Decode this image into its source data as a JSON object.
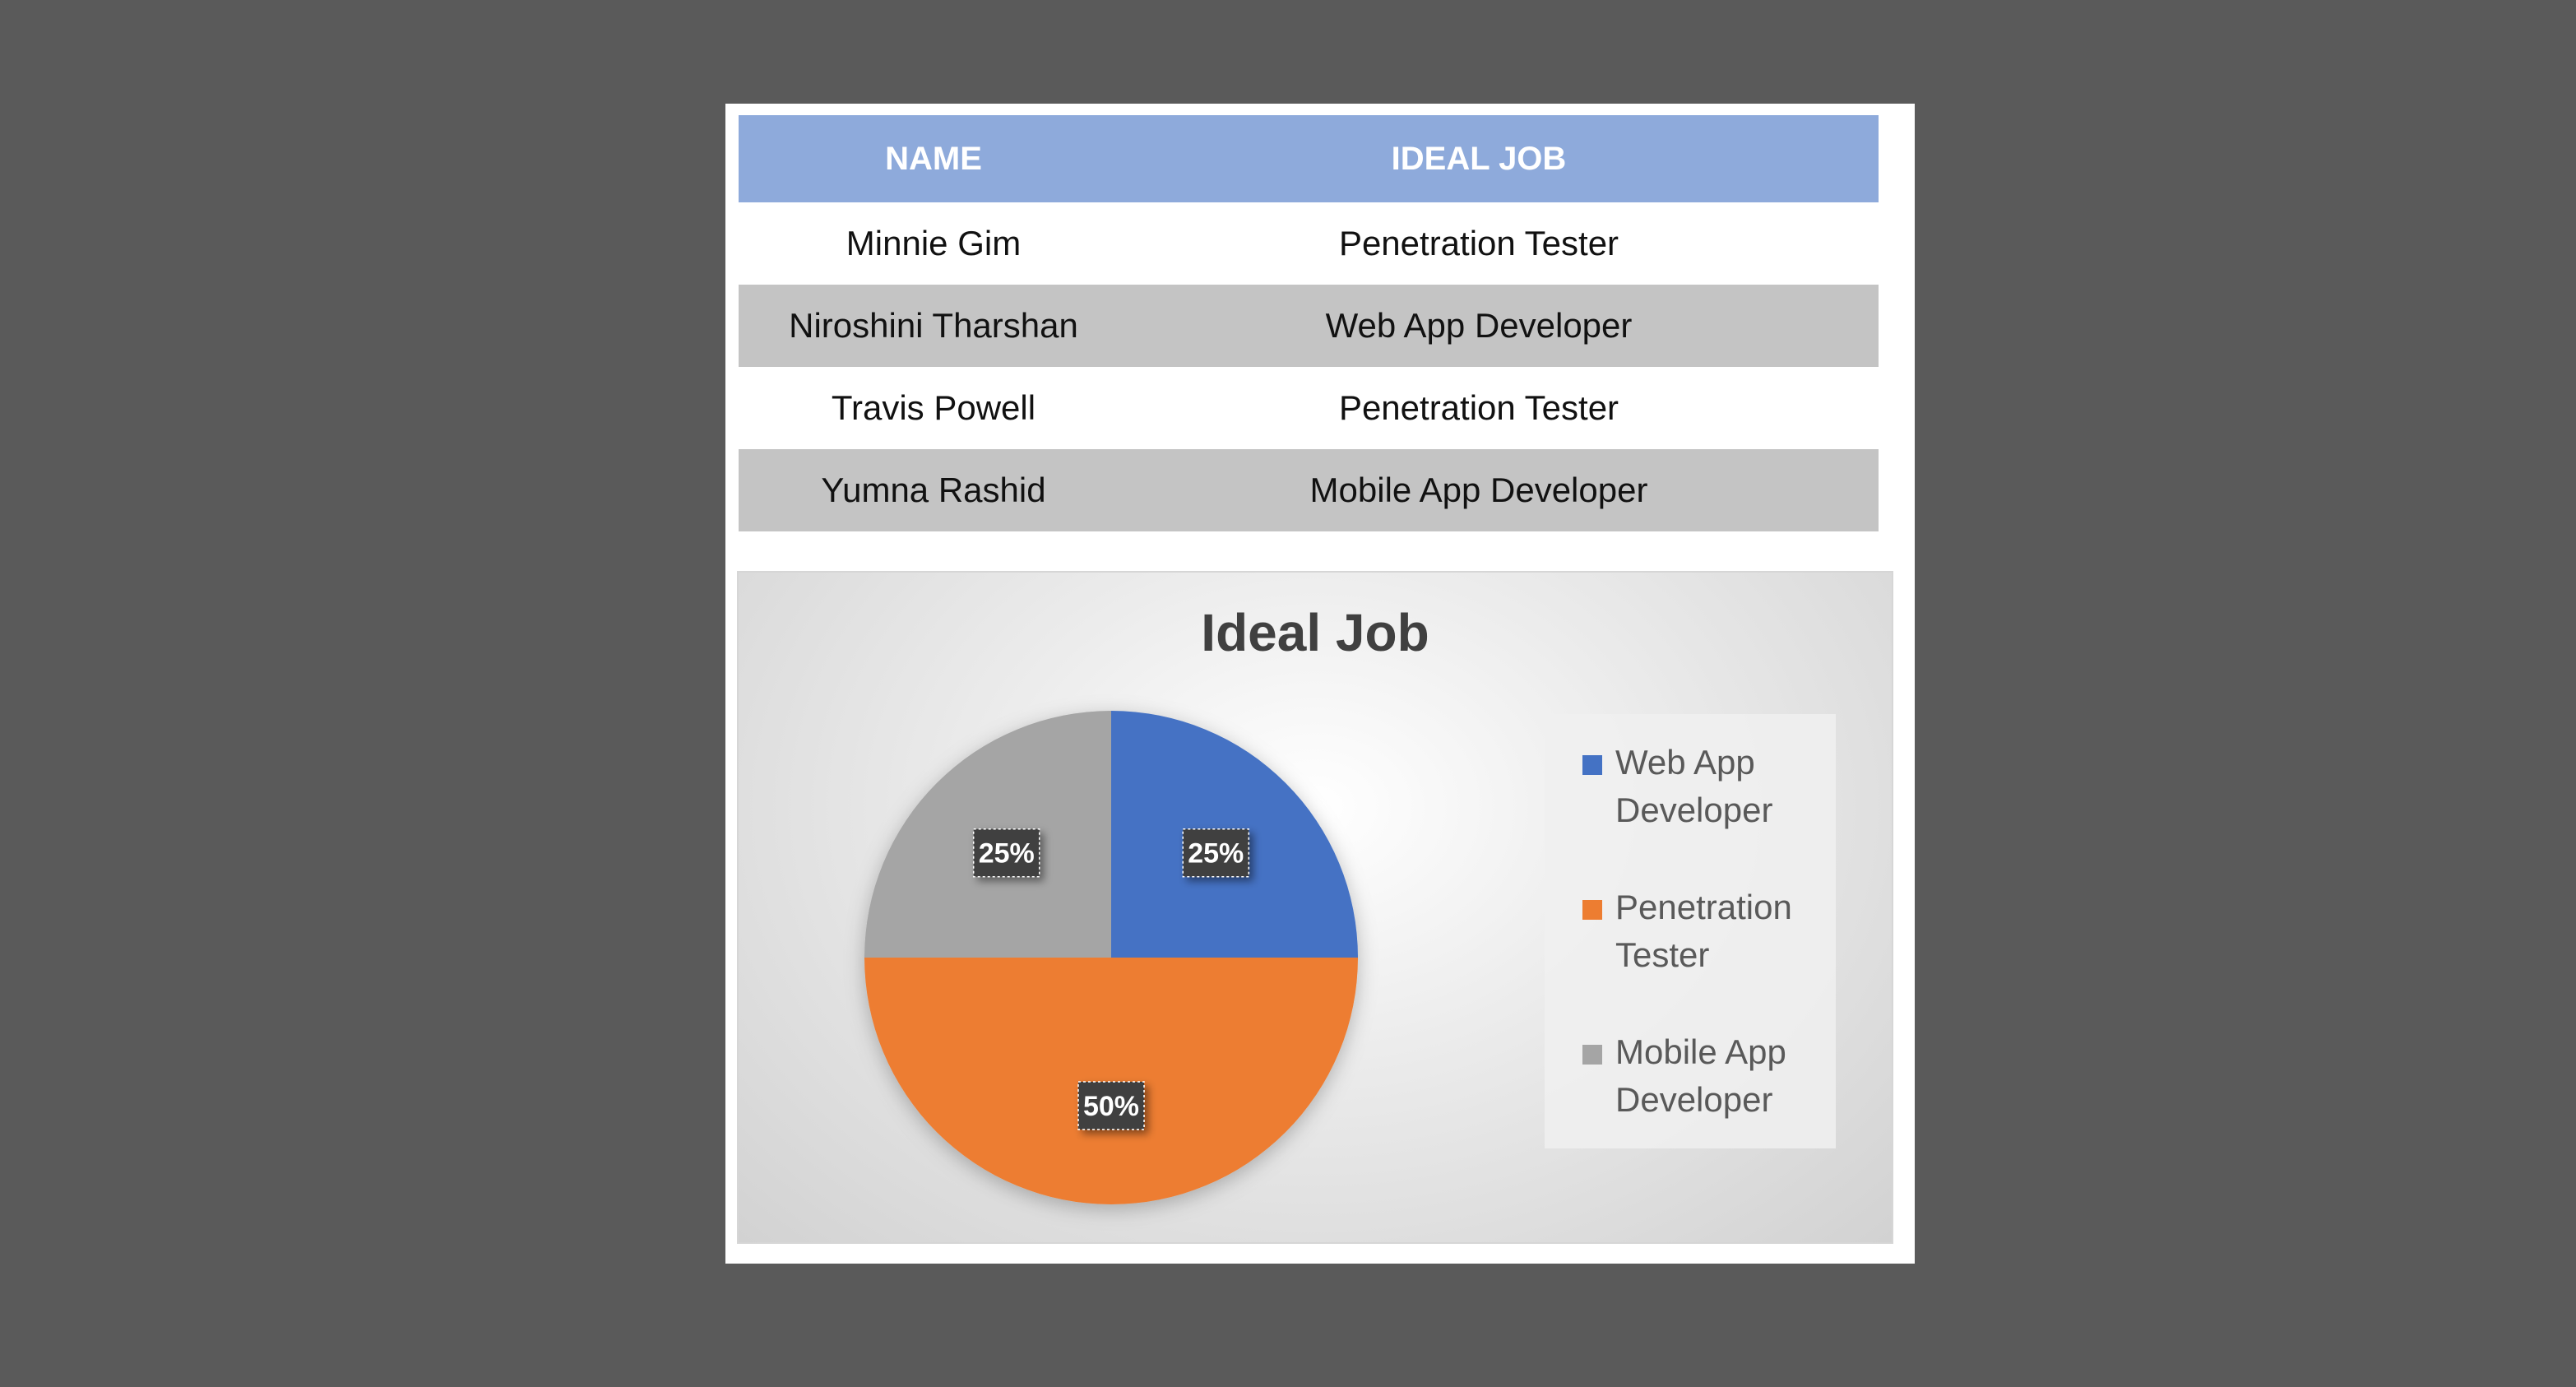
{
  "table": {
    "headers": [
      "NAME",
      "IDEAL JOB"
    ],
    "rows": [
      {
        "name": "Minnie Gim",
        "job": "Penetration Tester"
      },
      {
        "name": "Niroshini Tharshan",
        "job": "Web App Developer"
      },
      {
        "name": "Travis Powell",
        "job": "Penetration Tester"
      },
      {
        "name": "Yumna Rashid",
        "job": "Mobile App Developer"
      }
    ]
  },
  "chart_data": {
    "type": "pie",
    "title": "Ideal Job",
    "categories": [
      "Web App Developer",
      "Penetration Tester",
      "Mobile App Developer"
    ],
    "values": [
      25,
      50,
      25
    ],
    "labels": [
      "25%",
      "50%",
      "25%"
    ],
    "colors": [
      "#4472c4",
      "#ed7d31",
      "#a5a5a5"
    ],
    "legend_position": "right"
  }
}
